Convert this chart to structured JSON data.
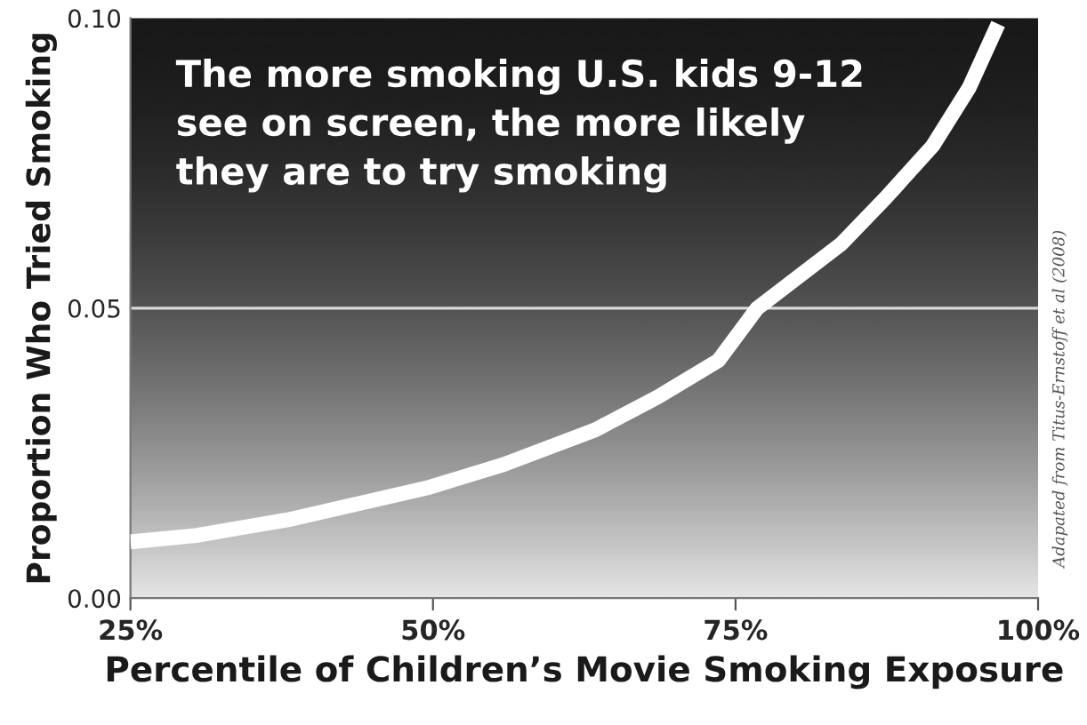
{
  "chart_data": {
    "type": "line",
    "title": "The more smoking U.S. kids 9-12\nsee on screen, the more likely\nthey are to try smoking",
    "xlabel": "Percentile of Children’s Movie Smoking Exposure",
    "ylabel": "Proportion Who Tried Smoking",
    "annotations": [
      "Adapated from Titus-Ernstoff et al (2008)"
    ],
    "series": [
      {
        "color": "#ffffff",
        "x": [
          25,
          30.4,
          38,
          49.5,
          55.8,
          63.4,
          68.6,
          73.6,
          76.8,
          83.7,
          87.4,
          91.3,
          94.3,
          96.7
        ],
        "values": [
          0.0097,
          0.0108,
          0.0135,
          0.019,
          0.023,
          0.029,
          0.0347,
          0.041,
          0.05,
          0.061,
          0.069,
          0.078,
          0.088,
          0.099
        ]
      }
    ],
    "xlim": [
      25,
      100
    ],
    "xticks": [
      {
        "value": 25,
        "label": "25%"
      },
      {
        "value": 50,
        "label": "50%"
      },
      {
        "value": 75,
        "label": "75%"
      },
      {
        "value": 100,
        "label": "100%"
      }
    ],
    "ylim": [
      0,
      0.1
    ],
    "yticks": [
      {
        "value": 0,
        "label": "0.00"
      },
      {
        "value": 0.05,
        "label": "0.05"
      },
      {
        "value": 0.1,
        "label": "0.10"
      }
    ],
    "ref_lines": [
      {
        "axis": "y",
        "value": 0.05,
        "color": "#d9d9d9"
      }
    ],
    "grid": false,
    "legend": false,
    "marker": "none",
    "line_style": "solid"
  }
}
